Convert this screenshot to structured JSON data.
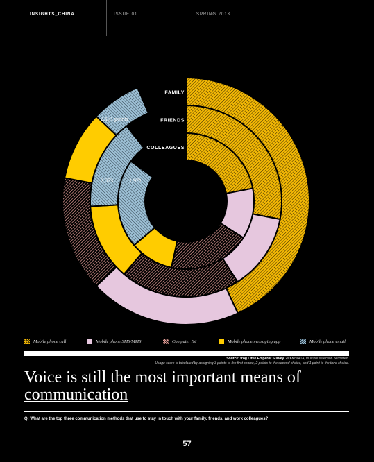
{
  "header": {
    "section": "INSIGHTS_CHINA",
    "issue": "ISSUE 01",
    "season": "SPRING 2013"
  },
  "colors": {
    "background": "#000000",
    "phone_call": "#f2b705",
    "sms": "#e6c7de",
    "computer_im": "#e6a09a",
    "messaging_app": "#ffcc00",
    "email": "#9dc0d5"
  },
  "chart_data": {
    "type": "radial-stacked-bar",
    "rings": [
      "FAMILY",
      "FRIENDS",
      "COLLEAGUES"
    ],
    "series": [
      {
        "name": "Mobile phone call",
        "color": "#f2b705",
        "pattern": "hatch-gold",
        "values": [
          1000,
          650,
          510
        ]
      },
      {
        "name": "Mobile phone SMS/MMS",
        "color": "#e6c7de",
        "pattern": "solid-pink",
        "values": [
          460,
          300,
          280
        ]
      },
      {
        "name": "Computer IM",
        "color": "#e6a09a",
        "pattern": "hatch-pink",
        "values": [
          350,
          470,
          450
        ]
      },
      {
        "name": "Mobile phone messaging app",
        "color": "#ffcc00",
        "pattern": "solid-yellow",
        "values": [
          210,
          300,
          240
        ]
      },
      {
        "name": "Mobile phone email",
        "color": "#9dc0d5",
        "pattern": "hatch-blue",
        "values": [
          151,
          353,
          491
        ]
      }
    ],
    "totals": [
      "2,171 points",
      "2,073",
      "1,971"
    ],
    "axis_max_points": 2320
  },
  "source": {
    "label": "Source: frog Little Emperor Survey, 2013",
    "sample": "n=414, multiple selection permitted.",
    "note": "Usage score is tabulated by assigning 3 points to the first choice, 2 points to the second choice, and 1 point to the third choice."
  },
  "headline": "Voice is still the most important means of communication",
  "question": "Q: What are the top three communication methods that use to stay in touch with your family, friends, and work colleagues?",
  "page_number": "57"
}
